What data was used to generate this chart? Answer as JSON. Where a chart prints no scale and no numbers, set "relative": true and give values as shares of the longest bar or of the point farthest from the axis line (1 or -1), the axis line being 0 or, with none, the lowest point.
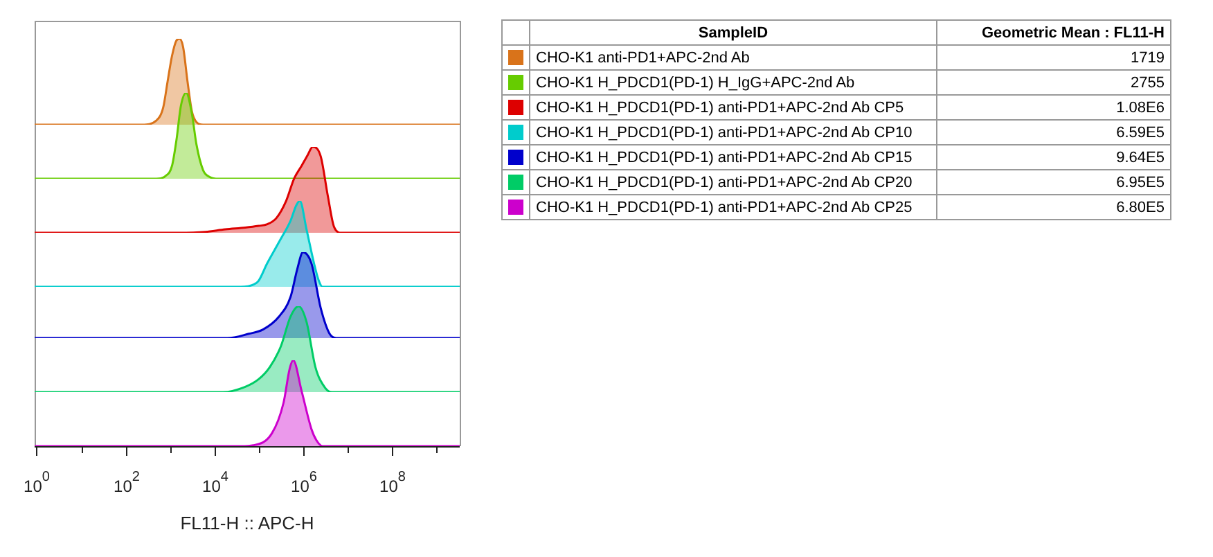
{
  "chart_data": [
    {
      "type": "area",
      "relative": true,
      "log": "x",
      "xlim": [
        0.9,
        3400000000.0
      ],
      "tick_labels": false,
      "series": [
        {
          "color": "#d9731a",
          "x": [
            0.9,
            240,
            500,
            710,
            890,
            1120,
            1410,
            1660,
            2000,
            2510,
            3160,
            3980,
            5620,
            3400000000.0
          ],
          "values": [
            0,
            0,
            0.05,
            0.2,
            0.5,
            0.8,
            0.98,
            1,
            0.9,
            0.5,
            0.15,
            0.03,
            0,
            0
          ]
        }
      ]
    },
    {
      "type": "area",
      "relative": true,
      "log": "x",
      "xlim": [
        0.9,
        3400000000.0
      ],
      "tick_labels": false,
      "series": [
        {
          "color": "#66cc00",
          "x": [
            0.9,
            500,
            790,
            1120,
            1410,
            1780,
            2340,
            3160,
            3980,
            5620,
            7940,
            12600,
            3400000000.0
          ],
          "values": [
            0,
            0,
            0.03,
            0.15,
            0.45,
            0.85,
            1,
            0.75,
            0.4,
            0.1,
            0.02,
            0,
            0
          ]
        }
      ]
    },
    {
      "type": "area",
      "relative": true,
      "log": "x",
      "xlim": [
        0.9,
        3400000000.0
      ],
      "tick_labels": false,
      "series": [
        {
          "color": "#dd0000",
          "x": [
            0.9,
            1580,
            6310,
            17800,
            50100,
            100000,
            158000,
            251000,
            417000,
            631000,
            933000,
            1260000,
            1660000,
            2510000,
            3630000,
            5010000,
            7410000,
            3400000000.0
          ],
          "values": [
            0,
            0,
            0.01,
            0.04,
            0.06,
            0.08,
            0.1,
            0.17,
            0.37,
            0.63,
            0.78,
            0.9,
            1,
            0.89,
            0.43,
            0.07,
            0,
            0
          ]
        }
      ]
    },
    {
      "type": "area",
      "relative": true,
      "log": "x",
      "xlim": [
        0.9,
        3400000000.0
      ],
      "tick_labels": false,
      "series": [
        {
          "color": "#00cccc",
          "x": [
            0.9,
            39800,
            79400,
            100000,
            155000,
            295000,
            525000,
            708000,
            851000,
            1200000,
            1780000,
            2240000,
            2750000,
            3400000000.0
          ],
          "values": [
            0,
            0,
            0.03,
            0.07,
            0.27,
            0.53,
            0.77,
            0.95,
            1,
            0.67,
            0.27,
            0.08,
            0,
            0
          ]
        }
      ]
    },
    {
      "type": "area",
      "relative": true,
      "log": "x",
      "xlim": [
        0.9,
        3400000000.0
      ],
      "tick_labels": false,
      "series": [
        {
          "color": "#0000cc",
          "x": [
            0.9,
            20000,
            60300,
            126000,
            288000,
            525000,
            741000,
            1000000,
            1550000,
            2510000,
            3980000,
            5620000,
            3400000000.0
          ],
          "values": [
            0,
            0,
            0.05,
            0.1,
            0.25,
            0.48,
            0.8,
            1,
            0.87,
            0.35,
            0.05,
            0,
            0
          ]
        }
      ]
    },
    {
      "type": "area",
      "relative": true,
      "log": "x",
      "xlim": [
        0.9,
        3400000000.0
      ],
      "tick_labels": false,
      "series": [
        {
          "color": "#00cc66",
          "x": [
            0.9,
            15800,
            49000,
            100000,
            178000,
            316000,
            525000,
            794000,
            1200000,
            1910000,
            3160000,
            4470000,
            3400000000.0
          ],
          "values": [
            0,
            0,
            0.06,
            0.15,
            0.29,
            0.53,
            0.88,
            1,
            0.82,
            0.29,
            0.05,
            0,
            0
          ]
        }
      ]
    },
    {
      "type": "area",
      "relative": true,
      "log": "x",
      "xlim": [
        0.9,
        3400000000.0
      ],
      "tick_labels": "x",
      "xlabel": "FL11-H :: APC-H",
      "xticks": [
        {
          "value": 1,
          "label": "10$^{0}$"
        },
        {
          "value": 10,
          "label": null
        },
        {
          "value": 100,
          "label": "10$^{2}$"
        },
        {
          "value": 1000,
          "label": null
        },
        {
          "value": 10000,
          "label": "10$^{4}$"
        },
        {
          "value": 100000,
          "label": null
        },
        {
          "value": 1000000,
          "label": "10$^{6}$"
        },
        {
          "value": 10000000,
          "label": null
        },
        {
          "value": 100000000,
          "label": "10$^{8}$"
        },
        {
          "value": 1000000000,
          "label": null
        }
      ],
      "series": [
        {
          "color": "#cc00cc",
          "x": [
            0.9,
            39800,
            75900,
            200000,
            363000,
            501000,
            603000,
            933000,
            1550000,
            2000000,
            2750000,
            3400000000.0
          ],
          "values": [
            0,
            0,
            0.01,
            0.15,
            0.5,
            0.9,
            1,
            0.64,
            0.2,
            0.07,
            0,
            0
          ]
        }
      ]
    },
    {
      "type": "other",
      "annotations": [
        "SampleID",
        "Geometric Mean : FL11-H"
      ],
      "categories": [
        "CHO-K1 anti-PD1+APC-2nd Ab",
        "CHO-K1 H_PDCD1(PD-1) H_IgG+APC-2nd Ab",
        "CHO-K1 H_PDCD1(PD-1) anti-PD1+APC-2nd Ab CP5",
        "CHO-K1 H_PDCD1(PD-1) anti-PD1+APC-2nd Ab CP10",
        "CHO-K1 H_PDCD1(PD-1) anti-PD1+APC-2nd Ab CP15",
        "CHO-K1 H_PDCD1(PD-1) anti-PD1+APC-2nd Ab CP20",
        "CHO-K1 H_PDCD1(PD-1) anti-PD1+APC-2nd Ab CP25"
      ],
      "value_labels": [
        "1719",
        "2755",
        "1.08E6",
        "6.59E5",
        "9.64E5",
        "6.95E5",
        "6.80E5"
      ],
      "colors": [
        "#d9731a",
        "#66cc00",
        "#dd0000",
        "#00cccc",
        "#0000cc",
        "#00cc66",
        "#cc00cc"
      ]
    }
  ]
}
